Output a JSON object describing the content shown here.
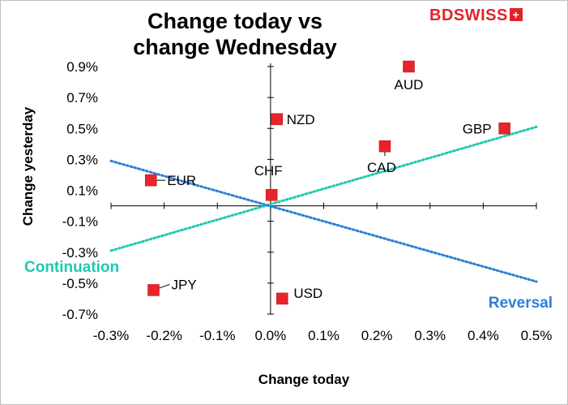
{
  "title_lines": [
    "Change today vs",
    "change Wednesday"
  ],
  "brand": {
    "text": "BDSWISS",
    "icon": "swiss-cross-icon",
    "color": "#e1222b"
  },
  "chart_data": {
    "type": "scatter",
    "title": "Change today vs change Wednesday",
    "xlabel": "Change today",
    "ylabel": "Change yesterday",
    "xlim": [
      -0.3,
      0.5
    ],
    "ylim": [
      -0.7,
      0.9
    ],
    "xticks": [
      -0.3,
      -0.2,
      -0.1,
      0.0,
      0.1,
      0.2,
      0.3,
      0.4,
      0.5
    ],
    "xtick_labels": [
      "-0.3%",
      "-0.2%",
      "-0.1%",
      "0.0%",
      "0.1%",
      "0.2%",
      "0.3%",
      "0.4%",
      "0.5%"
    ],
    "yticks": [
      0.9,
      0.7,
      0.5,
      0.3,
      0.1,
      -0.1,
      -0.3,
      -0.5,
      -0.7
    ],
    "ytick_labels": [
      "0.9%",
      "0.7%",
      "0.5%",
      "0.3%",
      "0.1%",
      "-0.1%",
      "-0.3%",
      "-0.5%",
      "-0.7%"
    ],
    "grid": false,
    "marker_color": "#e8232b",
    "points": [
      {
        "label": "AUD",
        "x": 0.26,
        "y": 0.9
      },
      {
        "label": "NZD",
        "x": 0.012,
        "y": 0.56
      },
      {
        "label": "GBP",
        "x": 0.44,
        "y": 0.5
      },
      {
        "label": "CAD",
        "x": 0.215,
        "y": 0.385
      },
      {
        "label": "EUR",
        "x": -0.225,
        "y": 0.165
      },
      {
        "label": "CHF",
        "x": 0.002,
        "y": 0.07
      },
      {
        "label": "JPY",
        "x": -0.22,
        "y": -0.545
      },
      {
        "label": "USD",
        "x": 0.022,
        "y": -0.6
      }
    ],
    "lines": [
      {
        "name": "Continuation",
        "color": "#20c9b1",
        "points": [
          [
            -0.3,
            -0.29
          ],
          [
            0.5,
            0.51
          ]
        ]
      },
      {
        "name": "Reversal",
        "color": "#2d7fd6",
        "points": [
          [
            -0.3,
            0.29
          ],
          [
            0.5,
            -0.49
          ]
        ]
      }
    ]
  }
}
